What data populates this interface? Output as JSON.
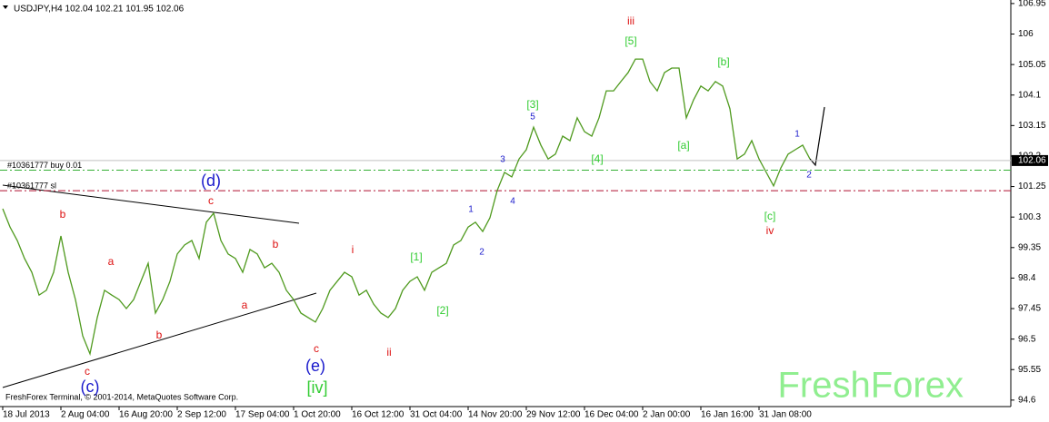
{
  "chart_data": {
    "type": "line",
    "title": "USDJPY,H4  102.04 102.21 101.95 102.06",
    "footer": "FreshForex Terminal, © 2001-2014, MetaQuotes Software Corp.",
    "watermark": "FreshForex",
    "categories": [
      "18 Jul 2013",
      null,
      null,
      null,
      null,
      null,
      null,
      null,
      "2 Aug 04:00",
      null,
      null,
      null,
      null,
      null,
      null,
      null,
      "16 Aug 20:00",
      null,
      null,
      null,
      null,
      null,
      null,
      null,
      "2 Sep 12:00",
      null,
      null,
      null,
      null,
      null,
      null,
      null,
      "17 Sep 04:00",
      null,
      null,
      null,
      null,
      null,
      null,
      null,
      "1 Oct 20:00",
      null,
      null,
      null,
      null,
      null,
      null,
      null,
      "16 Oct 12:00",
      null,
      null,
      null,
      null,
      null,
      null,
      null,
      "31 Oct 04:00",
      null,
      null,
      null,
      null,
      null,
      null,
      null,
      "14 Nov 20:00",
      null,
      null,
      null,
      null,
      null,
      null,
      null,
      "29 Nov 12:00",
      null,
      null,
      null,
      null,
      null,
      null,
      null,
      "16 Dec 04:00",
      null,
      null,
      null,
      null,
      null,
      null,
      null,
      "2 Jan 00:00",
      null,
      null,
      null,
      null,
      null,
      null,
      null,
      "16 Jan 16:00",
      null,
      null,
      null,
      null,
      null,
      null,
      null,
      "31 Jan 08:00",
      null,
      null,
      null,
      null,
      null,
      null,
      null
    ],
    "series": [
      {
        "name": "USDJPY",
        "color": "#4f9a1e",
        "values": [
          100.56,
          99.99,
          99.57,
          99.01,
          98.58,
          97.87,
          98.02,
          98.58,
          99.71,
          98.58,
          97.73,
          96.6,
          96.04,
          97.17,
          98.02,
          97.87,
          97.73,
          97.45,
          97.73,
          98.3,
          98.86,
          97.31,
          97.73,
          98.3,
          99.15,
          99.43,
          99.57,
          99.01,
          100.14,
          100.42,
          99.57,
          99.15,
          99.01,
          98.58,
          99.29,
          99.15,
          98.72,
          98.86,
          98.58,
          98.02,
          97.73,
          97.31,
          97.17,
          97.03,
          97.45,
          98.02,
          98.3,
          98.58,
          98.44,
          97.87,
          98.02,
          97.59,
          97.31,
          97.17,
          97.45,
          98.02,
          98.3,
          98.44,
          98.02,
          98.58,
          98.72,
          98.86,
          99.43,
          99.57,
          99.99,
          100.14,
          99.85,
          100.28,
          101.13,
          101.69,
          101.55,
          102.11,
          102.4,
          103.1,
          102.54,
          102.11,
          102.26,
          102.82,
          102.68,
          103.39,
          102.96,
          102.82,
          103.39,
          104.23,
          104.23,
          104.52,
          104.8,
          105.22,
          105.22,
          104.52,
          104.23,
          104.8,
          104.94,
          104.94,
          103.39,
          103.95,
          104.38,
          104.23,
          104.52,
          104.38,
          103.67,
          102.11,
          102.26,
          102.68,
          102.11,
          101.69,
          101.27,
          101.83,
          102.26,
          102.4,
          102.54,
          102.11
        ]
      }
    ],
    "ylim": [
      94.37,
      107.06
    ],
    "yticks": [
      106.95,
      106.0,
      105.05,
      104.1,
      103.15,
      102.2,
      101.25,
      100.3,
      99.35,
      98.4,
      97.45,
      96.5,
      95.55,
      94.6
    ],
    "last_price": 102.06,
    "hlines": [
      {
        "label": "#10361777 buy 0.01",
        "value": 101.76,
        "color": "#33b033"
      },
      {
        "label": "#10361777 sl",
        "value": 101.12,
        "color": "#b01030"
      }
    ],
    "annotations": [
      {
        "text": "b",
        "color": "#dd1111"
      },
      {
        "text": "a",
        "color": "#dd1111"
      },
      {
        "text": "b",
        "color": "#dd1111"
      },
      {
        "text": "c",
        "color": "#dd1111"
      },
      {
        "text": "(c)",
        "color": "#1a1acc"
      },
      {
        "text": "c",
        "color": "#dd1111"
      },
      {
        "text": "(d)",
        "color": "#1a1acc"
      },
      {
        "text": "a",
        "color": "#dd1111"
      },
      {
        "text": "b",
        "color": "#dd1111"
      },
      {
        "text": "c",
        "color": "#dd1111"
      },
      {
        "text": "(e)",
        "color": "#1a1acc"
      },
      {
        "text": "[iv]",
        "color": "#33cc33"
      },
      {
        "text": "i",
        "color": "#dd1111"
      },
      {
        "text": "ii",
        "color": "#dd1111"
      },
      {
        "text": "[1]",
        "color": "#33cc33"
      },
      {
        "text": "[2]",
        "color": "#33cc33"
      },
      {
        "text": "1",
        "color": "#1a1acc"
      },
      {
        "text": "2",
        "color": "#1a1acc"
      },
      {
        "text": "3",
        "color": "#1a1acc"
      },
      {
        "text": "4",
        "color": "#1a1acc"
      },
      {
        "text": "5",
        "color": "#1a1acc"
      },
      {
        "text": "[3]",
        "color": "#33cc33"
      },
      {
        "text": "[4]",
        "color": "#33cc33"
      },
      {
        "text": "[5]",
        "color": "#33cc33"
      },
      {
        "text": "iii",
        "color": "#dd1111"
      },
      {
        "text": "[a]",
        "color": "#33cc33"
      },
      {
        "text": "[b]",
        "color": "#33cc33"
      },
      {
        "text": "[c]",
        "color": "#33cc33"
      },
      {
        "text": "iv",
        "color": "#dd1111"
      },
      {
        "text": "1",
        "color": "#1a1acc"
      },
      {
        "text": "2",
        "color": "#1a1acc"
      }
    ]
  }
}
